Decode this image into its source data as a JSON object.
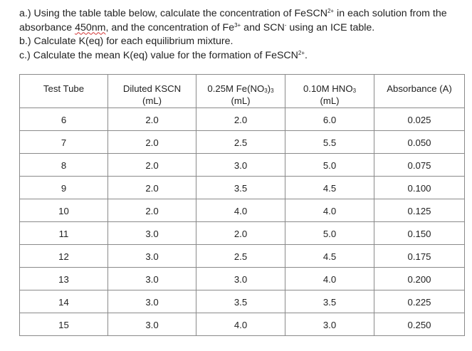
{
  "instructions": {
    "line_a_part1": "a.) Using the table table below, calculate the concentration of FeSCN",
    "line_a_sup1": "2+",
    "line_a_part2": " in each solution from the",
    "line_b_part1": "absorbance ",
    "line_b_squiggle": "450nm",
    "line_b_part2": ", and the concentration of Fe",
    "line_b_sup1": "3+",
    "line_b_part3": " and SCN",
    "line_b_sup2": "-",
    "line_b_part4": " using an ICE table.",
    "line_c": "b.) Calculate K(eq) for each equilibrium mixture.",
    "line_d_part1": "c.) Calculate the mean K(eq) value for the formation of FeSCN",
    "line_d_sup1": "2+",
    "line_d_part2": "."
  },
  "table": {
    "headers": [
      {
        "line1": "Test Tube",
        "line2": ""
      },
      {
        "line1": "Diluted KSCN",
        "line2": "(mL)"
      },
      {
        "line1": "0.25M Fe(NO",
        "sub": "3",
        "line1_end": ")",
        "sub2": "3",
        "line2": "(mL)"
      },
      {
        "line1": "0.10M HNO",
        "sub": "3",
        "line2": "(mL)"
      },
      {
        "line1": "Absorbance (A)",
        "line2": ""
      }
    ],
    "rows": [
      [
        "6",
        "2.0",
        "2.0",
        "6.0",
        "0.025"
      ],
      [
        "7",
        "2.0",
        "2.5",
        "5.5",
        "0.050"
      ],
      [
        "8",
        "2.0",
        "3.0",
        "5.0",
        "0.075"
      ],
      [
        "9",
        "2.0",
        "3.5",
        "4.5",
        "0.100"
      ],
      [
        "10",
        "2.0",
        "4.0",
        "4.0",
        "0.125"
      ],
      [
        "11",
        "3.0",
        "2.0",
        "5.0",
        "0.150"
      ],
      [
        "12",
        "3.0",
        "2.5",
        "4.5",
        "0.175"
      ],
      [
        "13",
        "3.0",
        "3.0",
        "4.0",
        "0.200"
      ],
      [
        "14",
        "3.0",
        "3.5",
        "3.5",
        "0.225"
      ],
      [
        "15",
        "3.0",
        "4.0",
        "3.0",
        "0.250"
      ]
    ]
  }
}
